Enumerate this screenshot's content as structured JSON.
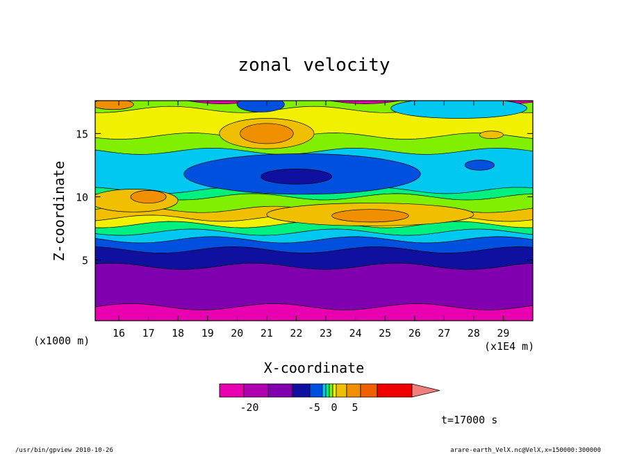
{
  "chart_data": {
    "type": "heatmap",
    "title": "zonal velocity",
    "xlabel": "X-coordinate",
    "ylabel": "Z-coordinate",
    "x_unit_left": "(x1000 m)",
    "x_unit_right": "(x1E4 m)",
    "x_ticks": [
      "16",
      "17",
      "18",
      "19",
      "20",
      "21",
      "22",
      "23",
      "24",
      "25",
      "26",
      "27",
      "28",
      "29"
    ],
    "y_ticks": [
      "5",
      "10",
      "15"
    ],
    "xlim": [
      15.2,
      30.0
    ],
    "ylim": [
      0.2,
      17.6
    ],
    "colorbar": {
      "tick_labels": [
        "-20",
        "-5",
        "0",
        "5"
      ],
      "colors": [
        "#e800b0",
        "#b000b0",
        "#8000b0",
        "#1010a0",
        "#0050e0",
        "#00c8f0",
        "#00f080",
        "#80f000",
        "#f0f000",
        "#f0c000",
        "#f09000",
        "#f06000",
        "#f00000",
        "#f08080"
      ]
    },
    "time_label": "t=17000 s",
    "footer_left": "/usr/bin/gpview  2010-10-26",
    "footer_right": "arare-earth_VelX.nc@VelX,x=150000:300000",
    "bands": [
      {
        "z_top": 1.3,
        "color": "#e800b0"
      },
      {
        "z_top": 4.5,
        "color": "#8000b0"
      },
      {
        "z_top": 5.8,
        "color": "#1010a0"
      },
      {
        "z_top": 6.6,
        "color": "#0050e0"
      },
      {
        "z_top": 7.2,
        "color": "#00c8f0"
      },
      {
        "z_top": 7.8,
        "color": "#00f080"
      },
      {
        "z_top": 8.3,
        "color": "#f0f000"
      },
      {
        "z_top": 9.0,
        "color": "#f0c000"
      },
      {
        "z_top": 10.0,
        "color": "#80f000"
      },
      {
        "z_top": 10.5,
        "color": "#00f080"
      },
      {
        "z_top": 13.6,
        "color": "#00c8f0"
      },
      {
        "z_top": 14.8,
        "color": "#80f000"
      },
      {
        "z_top": 16.9,
        "color": "#f0f000"
      },
      {
        "z_top": 17.6,
        "color": "#80f000"
      }
    ],
    "features": [
      {
        "x": 22.2,
        "z": 11.8,
        "rx": 4.0,
        "rz": 1.6,
        "color": "#0050e0"
      },
      {
        "x": 22.0,
        "z": 11.6,
        "rx": 1.2,
        "rz": 0.6,
        "color": "#1010a0"
      },
      {
        "x": 28.2,
        "z": 12.5,
        "rx": 0.5,
        "rz": 0.4,
        "color": "#0050e0"
      },
      {
        "x": 16.5,
        "z": 9.7,
        "rx": 1.5,
        "rz": 0.9,
        "color": "#f0c000"
      },
      {
        "x": 17.0,
        "z": 10.0,
        "rx": 0.6,
        "rz": 0.5,
        "color": "#f09000"
      },
      {
        "x": 24.5,
        "z": 8.6,
        "rx": 3.5,
        "rz": 0.9,
        "color": "#f0c000"
      },
      {
        "x": 24.5,
        "z": 8.5,
        "rx": 1.3,
        "rz": 0.5,
        "color": "#f09000"
      },
      {
        "x": 21.0,
        "z": 15.0,
        "rx": 1.6,
        "rz": 1.2,
        "color": "#f0c000"
      },
      {
        "x": 21.0,
        "z": 15.0,
        "rx": 0.9,
        "rz": 0.8,
        "color": "#f09000"
      },
      {
        "x": 15.8,
        "z": 17.3,
        "rx": 0.7,
        "rz": 0.4,
        "color": "#f09000"
      },
      {
        "x": 28.6,
        "z": 14.9,
        "rx": 0.4,
        "rz": 0.3,
        "color": "#f0c000"
      },
      {
        "x": 20.8,
        "z": 17.3,
        "rx": 0.8,
        "rz": 0.6,
        "color": "#0050e0"
      },
      {
        "x": 27.5,
        "z": 17.0,
        "rx": 2.3,
        "rz": 0.8,
        "color": "#00c8f0"
      }
    ]
  }
}
